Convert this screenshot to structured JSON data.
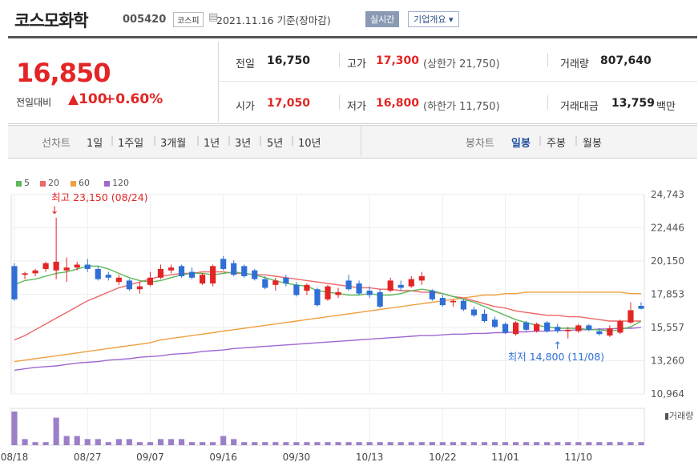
{
  "header": {
    "company": "코스모화학",
    "code": "005420",
    "market_badge": "코스피",
    "date_text": "2021.11.16  기준(장마감)",
    "realtime_btn": "실시간",
    "company_info_btn": "기업개요 ▾"
  },
  "quote": {
    "price": "16,850",
    "change_label": "전일대비",
    "change": "▲100",
    "change_pct": "+0.60%",
    "prev_label": "전일",
    "prev_value": "16,750",
    "open_label": "시가",
    "open_value": "17,050",
    "high_label": "고가",
    "high_value": "17,300",
    "high_limit": "(상한가 21,750)",
    "low_label": "저가",
    "low_value": "16,800",
    "low_limit": "(하한가 11,750)",
    "volume_label": "거래량",
    "volume_value": "807,640",
    "amount_label": "거래대금",
    "amount_value": "13,759",
    "amount_unit": "백만"
  },
  "tabs": {
    "line_chart_label": "선차트",
    "periods": [
      "1일",
      "1주일",
      "3개월",
      "1년",
      "3년",
      "5년",
      "10년"
    ],
    "candle_label": "봉차트",
    "candle_periods": [
      "일봉",
      "주봉",
      "월봉"
    ],
    "active_candle": "일봉"
  },
  "colors": {
    "up": "#e32525",
    "down": "#2f6fd6",
    "ma5": "#5cb85c",
    "ma20": "#ee6666",
    "ma60": "#f0a040",
    "ma120": "#a067d0",
    "volume": "#9b7fc8"
  },
  "chart_data": {
    "type": "candlestick",
    "legend": [
      {
        "name": "5",
        "color": "#5cb85c"
      },
      {
        "name": "20",
        "color": "#ee6666"
      },
      {
        "name": "60",
        "color": "#f0a040"
      },
      {
        "name": "120",
        "color": "#a067d0"
      }
    ],
    "y_ticks": [
      "24,743",
      "22,446",
      "20,150",
      "17,853",
      "15,557",
      "13,260",
      "10,964"
    ],
    "ylim": [
      10964,
      24743
    ],
    "x_ticks": [
      {
        "label": "08/18",
        "index": 0
      },
      {
        "label": "08/27",
        "index": 7
      },
      {
        "label": "09/07",
        "index": 13
      },
      {
        "label": "09/16",
        "index": 20
      },
      {
        "label": "09/30",
        "index": 27
      },
      {
        "label": "10/13",
        "index": 34
      },
      {
        "label": "10/22",
        "index": 41
      },
      {
        "label": "11/01",
        "index": 47
      },
      {
        "label": "11/10",
        "index": 54
      }
    ],
    "annotations": {
      "high": "최고 23,150 (08/24)",
      "high_index": 4,
      "high_value": 23150,
      "low": "최저 14,800 (11/08)",
      "low_index": 52,
      "low_value": 14800
    },
    "volume_label": "거래량",
    "candles": [
      {
        "o": 19800,
        "h": 20000,
        "l": 17400,
        "c": 17500
      },
      {
        "o": 19200,
        "h": 19400,
        "l": 18900,
        "c": 19300
      },
      {
        "o": 19300,
        "h": 19600,
        "l": 19100,
        "c": 19500
      },
      {
        "o": 19600,
        "h": 20100,
        "l": 19400,
        "c": 20000
      },
      {
        "o": 19500,
        "h": 23150,
        "l": 18900,
        "c": 20100
      },
      {
        "o": 19500,
        "h": 20400,
        "l": 18700,
        "c": 19700
      },
      {
        "o": 19700,
        "h": 20100,
        "l": 19500,
        "c": 19900
      },
      {
        "o": 19900,
        "h": 20300,
        "l": 19400,
        "c": 19600
      },
      {
        "o": 19600,
        "h": 19800,
        "l": 18800,
        "c": 18900
      },
      {
        "o": 19200,
        "h": 19400,
        "l": 18800,
        "c": 19000
      },
      {
        "o": 18700,
        "h": 19200,
        "l": 18500,
        "c": 19000
      },
      {
        "o": 18800,
        "h": 18900,
        "l": 18100,
        "c": 18200
      },
      {
        "o": 18200,
        "h": 18700,
        "l": 17900,
        "c": 18400
      },
      {
        "o": 18500,
        "h": 19400,
        "l": 18400,
        "c": 19000
      },
      {
        "o": 19000,
        "h": 19900,
        "l": 18900,
        "c": 19600
      },
      {
        "o": 19500,
        "h": 19900,
        "l": 19300,
        "c": 19700
      },
      {
        "o": 19800,
        "h": 19900,
        "l": 19000,
        "c": 19100
      },
      {
        "o": 19400,
        "h": 19700,
        "l": 18900,
        "c": 19000
      },
      {
        "o": 18600,
        "h": 19300,
        "l": 18500,
        "c": 19200
      },
      {
        "o": 18600,
        "h": 19900,
        "l": 18400,
        "c": 19800
      },
      {
        "o": 20300,
        "h": 20500,
        "l": 19500,
        "c": 19600
      },
      {
        "o": 20000,
        "h": 20200,
        "l": 19100,
        "c": 19200
      },
      {
        "o": 19800,
        "h": 19900,
        "l": 19000,
        "c": 19100
      },
      {
        "o": 19500,
        "h": 19600,
        "l": 18800,
        "c": 18900
      },
      {
        "o": 18900,
        "h": 19100,
        "l": 18200,
        "c": 18300
      },
      {
        "o": 18500,
        "h": 19000,
        "l": 18100,
        "c": 18800
      },
      {
        "o": 19000,
        "h": 19200,
        "l": 18400,
        "c": 18600
      },
      {
        "o": 18500,
        "h": 18700,
        "l": 17700,
        "c": 17800
      },
      {
        "o": 18100,
        "h": 18600,
        "l": 17800,
        "c": 18500
      },
      {
        "o": 18200,
        "h": 18300,
        "l": 17000,
        "c": 17100
      },
      {
        "o": 17500,
        "h": 18500,
        "l": 17400,
        "c": 18400
      },
      {
        "o": 17800,
        "h": 18300,
        "l": 17600,
        "c": 18000
      },
      {
        "o": 18800,
        "h": 19200,
        "l": 18100,
        "c": 18200
      },
      {
        "o": 18600,
        "h": 18800,
        "l": 17800,
        "c": 17900
      },
      {
        "o": 18100,
        "h": 18400,
        "l": 17600,
        "c": 17800
      },
      {
        "o": 18000,
        "h": 18200,
        "l": 16900,
        "c": 17000
      },
      {
        "o": 18100,
        "h": 19000,
        "l": 18000,
        "c": 18800
      },
      {
        "o": 18500,
        "h": 18800,
        "l": 18100,
        "c": 18300
      },
      {
        "o": 18400,
        "h": 19100,
        "l": 18300,
        "c": 18900
      },
      {
        "o": 18800,
        "h": 19400,
        "l": 18500,
        "c": 19100
      },
      {
        "o": 18100,
        "h": 18200,
        "l": 17400,
        "c": 17500
      },
      {
        "o": 17600,
        "h": 17800,
        "l": 17000,
        "c": 17100
      },
      {
        "o": 17300,
        "h": 17500,
        "l": 17000,
        "c": 17400
      },
      {
        "o": 17400,
        "h": 17500,
        "l": 16700,
        "c": 16800
      },
      {
        "o": 16800,
        "h": 17000,
        "l": 16300,
        "c": 16400
      },
      {
        "o": 16500,
        "h": 16800,
        "l": 15900,
        "c": 16000
      },
      {
        "o": 16100,
        "h": 16300,
        "l": 15500,
        "c": 15600
      },
      {
        "o": 15800,
        "h": 15900,
        "l": 15100,
        "c": 15200
      },
      {
        "o": 15100,
        "h": 16000,
        "l": 15000,
        "c": 15900
      },
      {
        "o": 15900,
        "h": 16000,
        "l": 15300,
        "c": 15400
      },
      {
        "o": 15300,
        "h": 15900,
        "l": 15200,
        "c": 15800
      },
      {
        "o": 15900,
        "h": 16000,
        "l": 15200,
        "c": 15300
      },
      {
        "o": 15600,
        "h": 15800,
        "l": 15200,
        "c": 15300
      },
      {
        "o": 15300,
        "h": 15600,
        "l": 14800,
        "c": 15400
      },
      {
        "o": 15300,
        "h": 15800,
        "l": 15200,
        "c": 15700
      },
      {
        "o": 15700,
        "h": 15800,
        "l": 15300,
        "c": 15400
      },
      {
        "o": 15300,
        "h": 15500,
        "l": 15000,
        "c": 15100
      },
      {
        "o": 15000,
        "h": 15700,
        "l": 14900,
        "c": 15500
      },
      {
        "o": 15200,
        "h": 16100,
        "l": 15100,
        "c": 16000
      },
      {
        "o": 15900,
        "h": 17300,
        "l": 15800,
        "c": 16750
      },
      {
        "o": 17050,
        "h": 17300,
        "l": 16800,
        "c": 16850
      }
    ],
    "volumes": [
      11,
      2,
      1,
      1,
      9,
      3,
      3,
      2,
      2,
      1,
      2,
      2,
      1,
      1,
      2,
      2,
      2,
      1,
      1,
      1,
      3,
      2,
      1,
      1,
      1,
      1,
      1,
      1,
      1,
      1,
      1,
      1,
      1,
      1,
      1,
      1,
      1,
      1,
      1,
      1,
      1,
      1,
      1,
      1,
      1,
      1,
      1,
      1,
      1,
      1,
      1,
      1,
      1,
      1,
      1,
      1,
      1,
      1,
      1,
      1,
      1
    ],
    "ma5": [
      18500,
      18800,
      18900,
      19100,
      19300,
      19400,
      19600,
      19800,
      19800,
      19600,
      19300,
      19000,
      18800,
      18700,
      18800,
      19000,
      19200,
      19300,
      19300,
      19200,
      19300,
      19400,
      19300,
      19200,
      19000,
      18800,
      18600,
      18500,
      18400,
      18100,
      18000,
      17900,
      17800,
      17800,
      17900,
      17800,
      17800,
      17900,
      18100,
      18200,
      18100,
      17900,
      17700,
      17500,
      17300,
      17000,
      16700,
      16400,
      16100,
      15900,
      15700,
      15600,
      15500,
      15500,
      15500,
      15400,
      15400,
      15300,
      15400,
      15600,
      16000
    ],
    "ma20": [
      14700,
      15000,
      15400,
      15800,
      16200,
      16600,
      17000,
      17400,
      17700,
      18000,
      18300,
      18500,
      18700,
      18900,
      19100,
      19200,
      19300,
      19300,
      19400,
      19400,
      19400,
      19300,
      19300,
      19200,
      19200,
      19100,
      19000,
      18900,
      18800,
      18700,
      18600,
      18500,
      18400,
      18300,
      18300,
      18200,
      18200,
      18100,
      18100,
      18000,
      18000,
      17900,
      17700,
      17600,
      17400,
      17200,
      17000,
      16900,
      16700,
      16600,
      16500,
      16400,
      16400,
      16300,
      16300,
      16200,
      16100,
      16000,
      16000,
      16000,
      16000
    ],
    "ma60": [
      13200,
      13300,
      13400,
      13500,
      13600,
      13700,
      13800,
      13900,
      14000,
      14100,
      14200,
      14300,
      14400,
      14500,
      14700,
      14800,
      14900,
      15000,
      15100,
      15200,
      15300,
      15400,
      15500,
      15600,
      15700,
      15800,
      15900,
      16000,
      16100,
      16200,
      16300,
      16400,
      16500,
      16600,
      16700,
      16800,
      16900,
      17000,
      17100,
      17200,
      17300,
      17400,
      17500,
      17600,
      17700,
      17800,
      17800,
      17900,
      17900,
      18000,
      18000,
      18000,
      18000,
      18000,
      18000,
      18000,
      18000,
      18000,
      18000,
      17900,
      17900
    ],
    "ma120": [
      12600,
      12700,
      12800,
      12850,
      12900,
      13000,
      13100,
      13150,
      13200,
      13300,
      13350,
      13400,
      13500,
      13550,
      13600,
      13700,
      13750,
      13800,
      13900,
      13950,
      14000,
      14100,
      14150,
      14200,
      14250,
      14300,
      14350,
      14400,
      14450,
      14500,
      14550,
      14600,
      14650,
      14700,
      14750,
      14800,
      14850,
      14900,
      14950,
      15000,
      15000,
      15050,
      15100,
      15100,
      15150,
      15150,
      15200,
      15200,
      15250,
      15250,
      15300,
      15300,
      15350,
      15350,
      15400,
      15400,
      15450,
      15450,
      15500,
      15500,
      15550
    ]
  }
}
